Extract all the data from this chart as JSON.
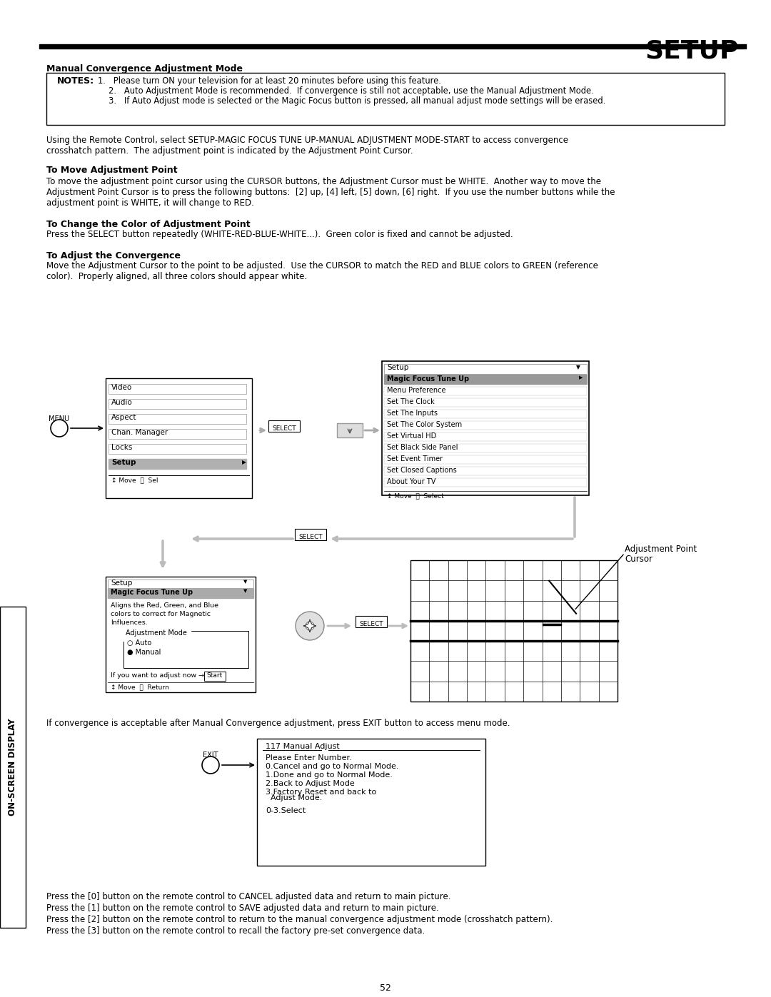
{
  "title": "SETUP",
  "page_number": "52",
  "bg_color": "#ffffff",
  "section_title": "Manual Convergence Adjustment Mode",
  "notes_items": [
    "Please turn ON your television for at least 20 minutes before using this feature.",
    "Auto Adjustment Mode is recommended.  If convergence is still not acceptable, use the Manual Adjustment Mode.",
    "If Auto Adjust mode is selected or the Magic Focus button is pressed, all manual adjust mode settings will be erased."
  ],
  "para1_lines": [
    "Using the Remote Control, select SETUP-MAGIC FOCUS TUNE UP-MANUAL ADJUSTMENT MODE-START to access convergence",
    "crosshatch pattern.  The adjustment point is indicated by the Adjustment Point Cursor."
  ],
  "sub1_title": "To Move Adjustment Point",
  "sub1_lines": [
    "To move the adjustment point cursor using the CURSOR buttons, the Adjustment Cursor must be WHITE.  Another way to move the",
    "Adjustment Point Cursor is to press the following buttons:  [2] up, [4] left, [5] down, [6] right.  If you use the number buttons while the",
    "adjustment point is WHITE, it will change to RED."
  ],
  "sub2_title": "To Change the Color of Adjustment Point",
  "sub2_lines": [
    "Press the SELECT button repeatedly (WHITE-RED-BLUE-WHITE...).  Green color is fixed and cannot be adjusted."
  ],
  "sub3_title": "To Adjust the Convergence",
  "sub3_lines": [
    "Move the Adjustment Cursor to the point to be adjusted.  Use the CURSOR to match the RED and BLUE colors to GREEN (reference",
    "color).  Properly aligned, all three colors should appear white."
  ],
  "menu1_items": [
    "Video",
    "Audio",
    "Aspect",
    "Chan. Manager",
    "Locks",
    "Setup"
  ],
  "menu1_footer": "↕ Move  Ⓢ  Sel",
  "menu2_title": "Setup",
  "menu2_items": [
    "Magic Focus Tune Up",
    "Menu Preference",
    "Set The Clock",
    "Set The Inputs",
    "Set The Color System",
    "Set Virtual HD",
    "Set Black Side Panel",
    "Set Event Timer",
    "Set Closed Captions",
    "About Your TV"
  ],
  "menu2_footer": "↕ Move  Ⓢ  Select",
  "menu3_title": "Setup",
  "menu3_subtitle": "Magic Focus Tune Up",
  "menu3_text": [
    "Aligns the Red, Green, and Blue",
    "colors to correct for Magnetic",
    "Influences."
  ],
  "menu3_adj": "Adjustment Mode",
  "menu3_auto": "Auto",
  "menu3_manual": "Manual",
  "menu3_start": "If you want to adjust now ",
  "menu3_footer": "↕ Move  Ⓢ  Return",
  "adj_cursor_label1": "Adjustment Point",
  "adj_cursor_label2": "Cursor",
  "bottom_text": "If convergence is acceptable after Manual Convergence adjustment, press EXIT button to access menu mode.",
  "bottom_box_title": "117 Manual Adjust",
  "bottom_box_lines": [
    "Please Enter Number.",
    "0.Cancel and go to Normal Mode.",
    "1.Done and go to Normal Mode.",
    "2.Back to Adjust Mode",
    "3.Factory Reset and back to",
    "  Adjust Mode.",
    "0-3.Select"
  ],
  "footer_lines": [
    "Press the [0] button on the remote control to CANCEL adjusted data and return to main picture.",
    "Press the [1] button on the remote control to SAVE adjusted data and return to main picture.",
    "Press the [2] button on the remote control to return to the manual convergence adjustment mode (crosshatch pattern).",
    "Press the [3] button on the remote control to recall the factory pre-set convergence data."
  ],
  "side_label": "ON-SCREEN DISPLAY",
  "menu_label": "MENU",
  "select_label": "SELECT",
  "exit_label": "EXIT"
}
